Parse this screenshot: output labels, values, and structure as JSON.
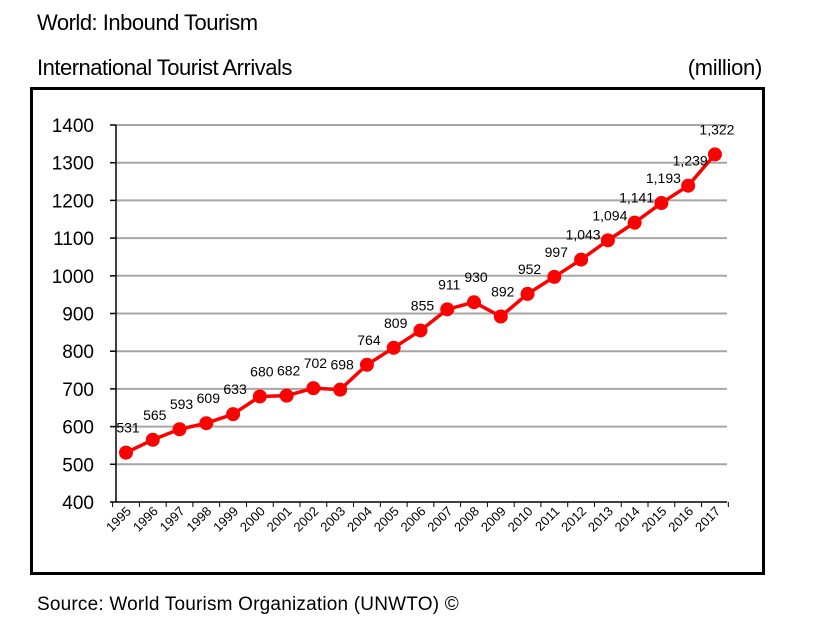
{
  "header": {
    "title": "World: Inbound Tourism",
    "subtitle": "International Tourist Arrivals",
    "unit": "(million)"
  },
  "footer": {
    "source": "Source: World Tourism Organization (UNWTO) ©"
  },
  "colors": {
    "series": "#ff0000",
    "grid": "#a6a6a6"
  },
  "chart_data": {
    "type": "line",
    "title": "World: Inbound Tourism",
    "subtitle": "International Tourist Arrivals",
    "ylabel": "(million)",
    "xlabel": "",
    "ylim": [
      400,
      1400
    ],
    "yticks": [
      400,
      500,
      600,
      700,
      800,
      900,
      1000,
      1100,
      1200,
      1300,
      1400
    ],
    "grid": true,
    "legend": "none",
    "categories": [
      "1995",
      "1996",
      "1997",
      "1998",
      "1999",
      "2000",
      "2001",
      "2002",
      "2003",
      "2004",
      "2005",
      "2006",
      "2007",
      "2008",
      "2009",
      "2010",
      "2011",
      "2012",
      "2013",
      "2014",
      "2015",
      "2016",
      "2017"
    ],
    "series": [
      {
        "values": [
          531,
          565,
          593,
          609,
          633,
          680,
          682,
          702,
          698,
          764,
          809,
          855,
          911,
          930,
          892,
          952,
          997,
          1043,
          1094,
          1141,
          1193,
          1239,
          1322
        ],
        "labels": [
          "531",
          "565",
          "593",
          "609",
          "633",
          "680",
          "682",
          "702",
          "698",
          "764",
          "809",
          "855",
          "911",
          "930",
          "892",
          "952",
          "997",
          "1,043",
          "1,094",
          "1,141",
          "1,193",
          "1,239",
          "1,322"
        ]
      }
    ]
  }
}
